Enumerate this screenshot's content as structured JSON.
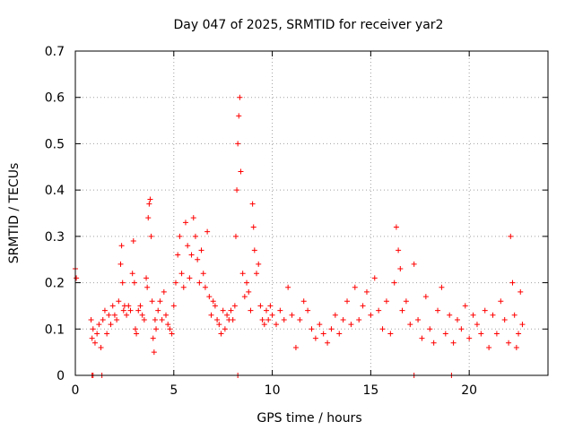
{
  "chart_data": {
    "type": "scatter",
    "title": "Day 047 of 2025, SRMTID for receiver yar2",
    "xlabel": "GPS time / hours",
    "ylabel": "SRMTID / TECUs",
    "xlim": [
      0,
      24
    ],
    "ylim": [
      0,
      0.7
    ],
    "grid": true,
    "marker": "+",
    "color": "#ff0000",
    "x_ticks": [
      {
        "value": 0,
        "label": "0"
      },
      {
        "value": 5,
        "label": "5"
      },
      {
        "value": 10,
        "label": "10"
      },
      {
        "value": 15,
        "label": "15"
      },
      {
        "value": 20,
        "label": "20"
      }
    ],
    "y_ticks": [
      {
        "value": 0,
        "label": "0"
      },
      {
        "value": 0.1,
        "label": "0.1"
      },
      {
        "value": 0.2,
        "label": "0.2"
      },
      {
        "value": 0.3,
        "label": "0.3"
      },
      {
        "value": 0.4,
        "label": "0.4"
      },
      {
        "value": 0.5,
        "label": "0.5"
      },
      {
        "value": 0.6,
        "label": "0.6"
      },
      {
        "value": 0.7,
        "label": "0.7"
      }
    ],
    "series": [
      {
        "name": "SRMTID",
        "x": [
          0.0,
          0.05,
          0.8,
          0.85,
          0.9,
          1.0,
          1.1,
          1.2,
          1.3,
          1.4,
          1.5,
          1.6,
          1.7,
          1.8,
          1.9,
          2.0,
          2.1,
          2.2,
          2.3,
          2.35,
          2.4,
          2.45,
          2.5,
          2.6,
          2.7,
          2.8,
          2.9,
          2.95,
          3.0,
          3.05,
          3.1,
          3.2,
          3.3,
          3.4,
          3.5,
          3.6,
          3.65,
          3.7,
          3.75,
          3.8,
          3.85,
          3.9,
          3.95,
          4.0,
          4.05,
          4.1,
          4.2,
          4.3,
          4.4,
          4.5,
          4.6,
          4.7,
          4.8,
          4.9,
          5.0,
          5.1,
          5.2,
          5.3,
          5.4,
          5.5,
          5.6,
          5.7,
          5.8,
          5.9,
          6.0,
          6.1,
          6.2,
          6.3,
          6.4,
          6.5,
          6.6,
          6.7,
          6.8,
          6.9,
          7.0,
          7.1,
          7.2,
          7.3,
          7.4,
          7.5,
          7.6,
          7.7,
          7.8,
          7.9,
          8.0,
          8.1,
          8.15,
          8.2,
          8.25,
          8.3,
          8.35,
          8.4,
          8.5,
          8.6,
          8.7,
          8.8,
          8.9,
          9.0,
          9.05,
          9.1,
          9.2,
          9.3,
          9.4,
          9.5,
          9.6,
          9.7,
          9.8,
          9.9,
          10.0,
          10.2,
          10.4,
          10.6,
          10.8,
          11.0,
          11.2,
          11.4,
          11.6,
          11.8,
          12.0,
          12.2,
          12.4,
          12.6,
          12.8,
          13.0,
          13.2,
          13.4,
          13.6,
          13.8,
          14.0,
          14.2,
          14.4,
          14.6,
          14.8,
          15.0,
          15.2,
          15.4,
          15.6,
          15.8,
          16.0,
          16.2,
          16.3,
          16.4,
          16.5,
          16.6,
          16.8,
          17.0,
          17.2,
          17.4,
          17.6,
          17.8,
          18.0,
          18.2,
          18.4,
          18.6,
          18.8,
          19.0,
          19.2,
          19.4,
          19.6,
          19.8,
          20.0,
          20.2,
          20.4,
          20.6,
          20.8,
          21.0,
          21.2,
          21.4,
          21.6,
          21.8,
          22.0,
          22.1,
          22.2,
          22.3,
          22.4,
          22.5,
          22.6,
          22.7,
          0.85,
          0.9,
          1.35,
          8.25,
          17.2,
          19.1
        ],
        "y": [
          0.23,
          0.21,
          0.12,
          0.08,
          0.1,
          0.07,
          0.09,
          0.11,
          0.06,
          0.12,
          0.14,
          0.09,
          0.13,
          0.11,
          0.15,
          0.13,
          0.12,
          0.16,
          0.24,
          0.28,
          0.2,
          0.14,
          0.15,
          0.13,
          0.15,
          0.14,
          0.22,
          0.29,
          0.2,
          0.1,
          0.09,
          0.14,
          0.15,
          0.13,
          0.12,
          0.21,
          0.19,
          0.34,
          0.37,
          0.38,
          0.3,
          0.16,
          0.08,
          0.05,
          0.12,
          0.1,
          0.14,
          0.16,
          0.12,
          0.18,
          0.13,
          0.11,
          0.1,
          0.09,
          0.15,
          0.2,
          0.26,
          0.3,
          0.22,
          0.19,
          0.33,
          0.28,
          0.21,
          0.26,
          0.34,
          0.3,
          0.25,
          0.2,
          0.27,
          0.22,
          0.19,
          0.31,
          0.17,
          0.13,
          0.16,
          0.15,
          0.12,
          0.11,
          0.09,
          0.14,
          0.1,
          0.13,
          0.12,
          0.14,
          0.12,
          0.15,
          0.3,
          0.4,
          0.5,
          0.56,
          0.6,
          0.44,
          0.22,
          0.17,
          0.2,
          0.18,
          0.14,
          0.37,
          0.32,
          0.27,
          0.22,
          0.24,
          0.15,
          0.12,
          0.11,
          0.14,
          0.12,
          0.15,
          0.13,
          0.11,
          0.14,
          0.12,
          0.19,
          0.13,
          0.06,
          0.12,
          0.16,
          0.14,
          0.1,
          0.08,
          0.11,
          0.09,
          0.07,
          0.1,
          0.13,
          0.09,
          0.12,
          0.16,
          0.11,
          0.19,
          0.12,
          0.15,
          0.18,
          0.13,
          0.21,
          0.14,
          0.1,
          0.16,
          0.09,
          0.2,
          0.32,
          0.27,
          0.23,
          0.14,
          0.16,
          0.11,
          0.24,
          0.12,
          0.08,
          0.17,
          0.1,
          0.07,
          0.14,
          0.19,
          0.09,
          0.13,
          0.07,
          0.12,
          0.1,
          0.15,
          0.08,
          0.13,
          0.11,
          0.09,
          0.14,
          0.06,
          0.13,
          0.09,
          0.16,
          0.12,
          0.07,
          0.3,
          0.2,
          0.13,
          0.06,
          0.09,
          0.18,
          0.11,
          0.0,
          0.0,
          0.0,
          0.0,
          0.0,
          0.0
        ]
      }
    ]
  }
}
